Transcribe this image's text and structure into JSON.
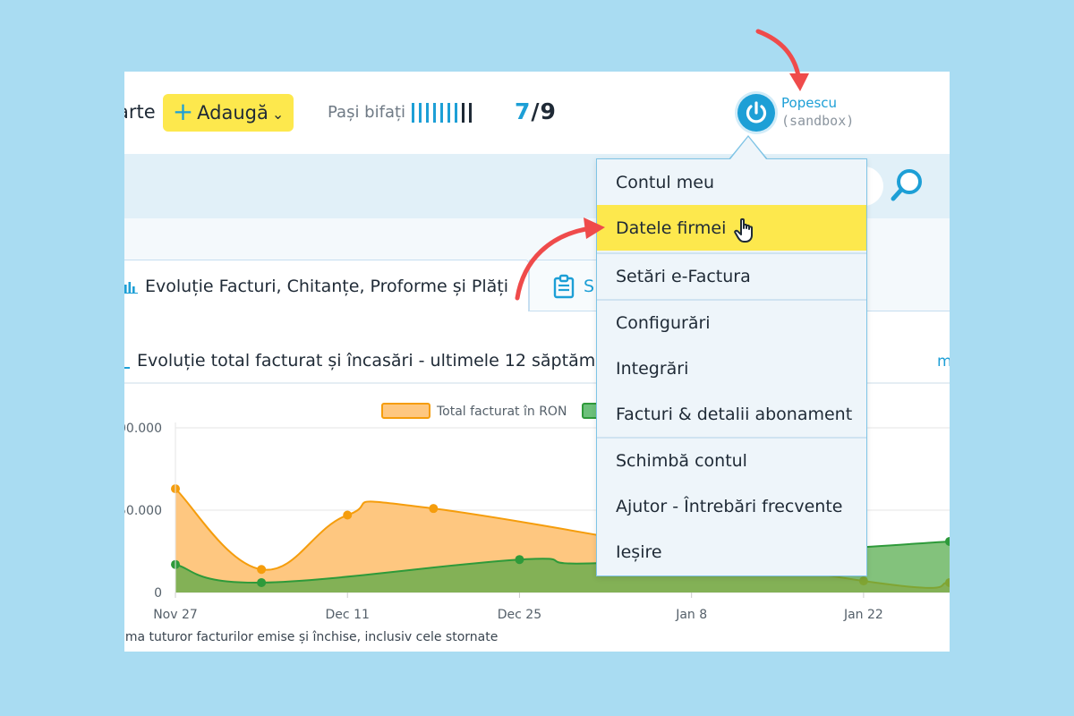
{
  "header": {
    "truncated_label": "arte",
    "add_button_label": "Adaugă",
    "steps_label": "Pași bifați",
    "steps_done": 7,
    "steps_total": 9,
    "steps_done_text": "7",
    "steps_total_text": "/9",
    "user_name": "Popescu",
    "user_env": "(sandbox)"
  },
  "tabs": {
    "active_label": "Evoluție Facturi, Chitanțe, Proforme și Plăți",
    "other_label": "S"
  },
  "section": {
    "title": "Evoluție total facturat și încasări - ultimele 12 săptămâ",
    "link_label": "m",
    "note": "uma tuturor facturilor emise și închise, inclusiv cele stornate"
  },
  "menu": {
    "items": [
      {
        "label": "Contul meu"
      },
      {
        "label": "Datele firmei"
      },
      {
        "label": "Setări e-Factura"
      },
      {
        "label": "Configurări"
      },
      {
        "label": "Integrări"
      },
      {
        "label": "Facturi & detalii abonament"
      },
      {
        "label": "Schimbă contul"
      },
      {
        "label": "Ajutor - Întrebări frecvente"
      },
      {
        "label": "Ieșire"
      }
    ],
    "active_index": 1
  },
  "colors": {
    "accent": "#1d9fd6",
    "highlight": "#fde84d",
    "arrow": "#ef4b4b",
    "orange_fill": "#fec780",
    "orange_line": "#f59d0c",
    "green_fill": "#6cc07a",
    "green_line": "#2e9a3a"
  },
  "chart_data": {
    "type": "area",
    "legend": [
      {
        "name": "Total facturat în RON"
      },
      {
        "name": ""
      }
    ],
    "x_tick_labels": [
      "Nov 27",
      "Dec 11",
      "Dec 25",
      "Jan 8",
      "Jan 22"
    ],
    "y_tick_labels": [
      "0",
      "50.000",
      "00.000"
    ],
    "ylim": [
      0,
      100000
    ],
    "series": [
      {
        "name": "Total facturat în RON",
        "points": [
          [
            "2023-11-27",
            63000
          ],
          [
            "2023-12-04",
            14000
          ],
          [
            "2023-12-11",
            47000
          ],
          [
            "2023-12-18",
            51000
          ],
          [
            "2024-01-22",
            7000
          ],
          [
            "2024-01-29",
            6000
          ]
        ]
      },
      {
        "name": "",
        "points": [
          [
            "2023-11-27",
            17000
          ],
          [
            "2023-12-04",
            6000
          ],
          [
            "2023-12-25",
            20000
          ],
          [
            "2024-01-01",
            18000
          ],
          [
            "2024-01-29",
            31000
          ]
        ]
      }
    ]
  }
}
